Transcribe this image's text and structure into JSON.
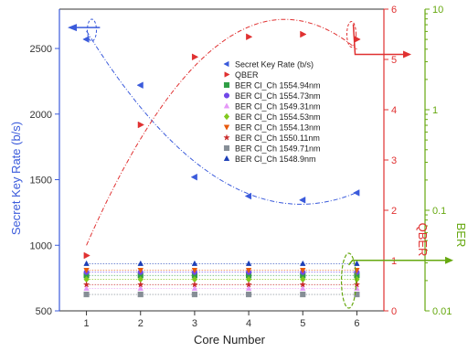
{
  "chart_data": {
    "type": "scatter",
    "x": [
      1,
      2,
      3,
      4,
      5,
      6
    ],
    "xlabel": "Core Number",
    "xlim": [
      0.5,
      6.5
    ],
    "axes": {
      "left": {
        "label": "Secret Key Rate (b/s)",
        "ylim": [
          500,
          2800
        ],
        "ticks": [
          500,
          1000,
          1500,
          2000,
          2500
        ],
        "color": "#3b5bdb"
      },
      "right1": {
        "label": "QBER",
        "ylim": [
          0,
          6
        ],
        "ticks": [
          0,
          1,
          2,
          3,
          4,
          5,
          6
        ],
        "color": "#e03131"
      },
      "right2": {
        "label": "BER",
        "scale": "log",
        "ylim": [
          0.01,
          10
        ],
        "ticks": [
          0.01,
          0.1,
          1,
          10
        ],
        "tick_labels": [
          "0.01",
          "0.1",
          "1",
          "10"
        ],
        "color": "#66a80f"
      }
    },
    "series": [
      {
        "name": "Secret Key Rate (b/s)",
        "axis": "left",
        "marker": "triangle-left",
        "color": "#3b5bdb",
        "values": [
          2570,
          2220,
          1520,
          1375,
          1345,
          1400
        ]
      },
      {
        "name": "QBER",
        "axis": "right1",
        "marker": "triangle-right",
        "color": "#e03131",
        "values": [
          1.1,
          3.7,
          5.05,
          5.45,
          5.5,
          5.4
        ]
      },
      {
        "name": "BER Cl_Ch 1554.94nm",
        "axis": "left",
        "marker": "square",
        "color": "#2f9e44",
        "values": [
          770,
          770,
          770,
          770,
          770,
          770
        ]
      },
      {
        "name": "BER Cl_Ch 1554.73nm",
        "axis": "left",
        "marker": "circle",
        "color": "#7048e8",
        "values": [
          795,
          795,
          795,
          795,
          795,
          795
        ]
      },
      {
        "name": "BER Cl_Ch 1549.31nm",
        "axis": "left",
        "marker": "triangle-up",
        "color": "#e599f7",
        "values": [
          670,
          670,
          670,
          670,
          670,
          670
        ]
      },
      {
        "name": "BER Cl_Ch 1554.53nm",
        "axis": "left",
        "marker": "diamond",
        "color": "#82c91e",
        "values": [
          740,
          740,
          740,
          740,
          740,
          740
        ]
      },
      {
        "name": "BER Cl_Ch 1554.13nm",
        "axis": "left",
        "marker": "triangle-down",
        "color": "#e8590c",
        "values": [
          810,
          810,
          810,
          810,
          810,
          810
        ]
      },
      {
        "name": "BER Cl_Ch 1550.11nm",
        "axis": "left",
        "marker": "star",
        "color": "#c92a2a",
        "values": [
          700,
          700,
          700,
          700,
          700,
          700
        ]
      },
      {
        "name": "BER Cl_Ch 1549.71nm",
        "axis": "left",
        "marker": "square",
        "color": "#868e96",
        "values": [
          625,
          625,
          625,
          625,
          625,
          625
        ]
      },
      {
        "name": "BER Cl_Ch 1548.9nm",
        "axis": "left",
        "marker": "triangle-up",
        "color": "#1c3fb7",
        "values": [
          860,
          860,
          860,
          860,
          860,
          860
        ]
      }
    ],
    "legend_position": "top-right inside plot",
    "grid": false
  }
}
